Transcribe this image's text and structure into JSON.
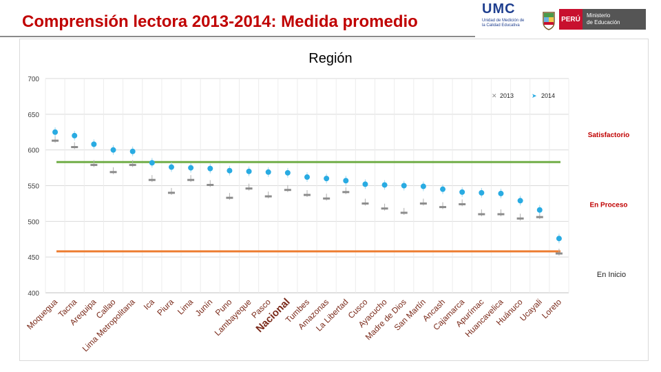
{
  "slide": {
    "title": "Comprensión lectora 2013-2014: Medida promedio",
    "umc_logo": "UMC",
    "umc_sub": "Unidad de Medición de la Calidad Educativa",
    "peru_label": "PERÚ",
    "ministry_line1": "Ministerio",
    "ministry_line2": "de Educación"
  },
  "colors": {
    "title": "#c00000",
    "series_2013": "#8c8c8c",
    "series_2014": "#29abe2",
    "satisfactorio_line": "#70ad47",
    "inicio_line": "#ed7d31",
    "level_label": "#c00000"
  },
  "chart_data": {
    "type": "scatter",
    "title": "Región",
    "xlabel": "",
    "ylabel": "",
    "ylim": [
      400,
      700
    ],
    "yticks": [
      400,
      450,
      500,
      550,
      600,
      650,
      700
    ],
    "categories": [
      "Moquegua",
      "Tacna",
      "Arequipa",
      "Callao",
      "Lima Metropolitana",
      "Ica",
      "Piura",
      "Lima",
      "Junín",
      "Puno",
      "Lambayeque",
      "Pasco",
      "Nacional",
      "Tumbes",
      "Amazonas",
      "La Libertad",
      "Cusco",
      "Ayacucho",
      "Madre de Dios",
      "San Martín",
      "Ancash",
      "Cajamarca",
      "Apurímac",
      "Huancavelica",
      "Huánuco",
      "Ucayali",
      "Loreto"
    ],
    "highlight_category": "Nacional",
    "series": [
      {
        "name": "2013",
        "marker": "x",
        "values": [
          613,
          604,
          579,
          569,
          579,
          558,
          540,
          558,
          551,
          533,
          546,
          535,
          544,
          537,
          532,
          541,
          525,
          518,
          512,
          525,
          520,
          524,
          510,
          510,
          504,
          506,
          455
        ]
      },
      {
        "name": "2014",
        "marker": "circle",
        "values": [
          625,
          620,
          608,
          600,
          598,
          582,
          576,
          575,
          574,
          571,
          570,
          569,
          568,
          562,
          560,
          557,
          552,
          551,
          550,
          549,
          545,
          541,
          540,
          539,
          529,
          516,
          476
        ]
      }
    ],
    "reference_lines": [
      {
        "name": "Satisfactorio",
        "value": 583
      },
      {
        "name": "Inicio",
        "value": 458
      }
    ],
    "level_labels": [
      {
        "text": "Satisfactorio",
        "y": 622
      },
      {
        "text": "En Proceso",
        "y": 524
      },
      {
        "text": "En Inicio",
        "y": 426
      }
    ],
    "legend": {
      "position": "top-right",
      "entries": [
        "2013",
        "2014"
      ]
    }
  }
}
